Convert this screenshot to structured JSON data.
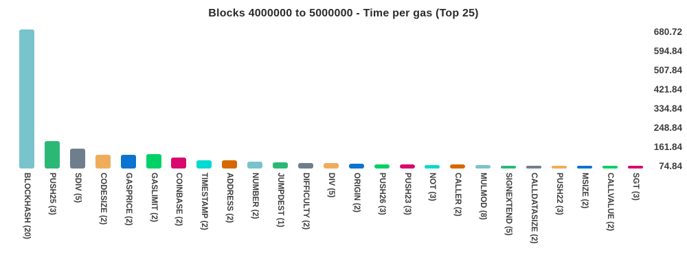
{
  "chart_data": {
    "type": "bar",
    "title": "Blocks 4000000 to 5000000 - Time per gas (Top 25)",
    "xlabel": "",
    "ylabel": "",
    "legend": "none",
    "grid": false,
    "y_axis_side": "right",
    "x_label_rotation_deg": 90,
    "background": "#ffffff",
    "ylim": [
      70,
      680.72
    ],
    "y_ticks": [
      "680.72",
      "594.84",
      "507.84",
      "421.84",
      "334.84",
      "248.84",
      "161.84",
      "74.84"
    ],
    "palette": [
      "#79C3CC",
      "#2BB877",
      "#6F7E8C",
      "#EFAD5B",
      "#0B74D0",
      "#00D166",
      "#D9086F",
      "#02DAD1",
      "#D66800"
    ],
    "bars": [
      {
        "label": "BLOCKHASH (20)",
        "opcode": "BLOCKHASH",
        "count": 20,
        "value": 680.72
      },
      {
        "label": "PUSH25 (3)",
        "opcode": "PUSH25",
        "count": 3,
        "value": 191
      },
      {
        "label": "SDIV (5)",
        "opcode": "SDIV",
        "count": 5,
        "value": 158
      },
      {
        "label": "CODESIZE (2)",
        "opcode": "CODESIZE",
        "count": 2,
        "value": 129
      },
      {
        "label": "GASPRICE (2)",
        "opcode": "GASPRICE",
        "count": 2,
        "value": 129
      },
      {
        "label": "GASLIMIT (2)",
        "opcode": "GASLIMIT",
        "count": 2,
        "value": 132
      },
      {
        "label": "COINBASE (2)",
        "opcode": "COINBASE",
        "count": 2,
        "value": 117
      },
      {
        "label": "TIMESTAMP (2)",
        "opcode": "TIMESTAMP",
        "count": 2,
        "value": 105
      },
      {
        "label": "ADDRESS (2)",
        "opcode": "ADDRESS",
        "count": 2,
        "value": 105
      },
      {
        "label": "NUMBER (2)",
        "opcode": "NUMBER",
        "count": 2,
        "value": 99
      },
      {
        "label": "JUMPDEST (1)",
        "opcode": "JUMPDEST",
        "count": 1,
        "value": 96
      },
      {
        "label": "DIFFICULTY (2)",
        "opcode": "DIFFICULTY",
        "count": 2,
        "value": 94
      },
      {
        "label": "DIV (5)",
        "opcode": "DIV",
        "count": 5,
        "value": 94
      },
      {
        "label": "ORIGIN (2)",
        "opcode": "ORIGIN",
        "count": 2,
        "value": 90
      },
      {
        "label": "PUSH26 (3)",
        "opcode": "PUSH26",
        "count": 3,
        "value": 89
      },
      {
        "label": "PUSH23 (3)",
        "opcode": "PUSH23",
        "count": 3,
        "value": 87
      },
      {
        "label": "NOT (3)",
        "opcode": "NOT",
        "count": 3,
        "value": 86
      },
      {
        "label": "CALLER (2)",
        "opcode": "CALLER",
        "count": 2,
        "value": 87
      },
      {
        "label": "MULMOD (8)",
        "opcode": "MULMOD",
        "count": 8,
        "value": 84
      },
      {
        "label": "SIGNEXTEND (5)",
        "opcode": "SIGNEXTEND",
        "count": 5,
        "value": 82
      },
      {
        "label": "CALLDATASIZE (2)",
        "opcode": "CALLDATASIZE",
        "count": 2,
        "value": 81
      },
      {
        "label": "PUSH22 (3)",
        "opcode": "PUSH22",
        "count": 3,
        "value": 79
      },
      {
        "label": "MSIZE (2)",
        "opcode": "MSIZE",
        "count": 2,
        "value": 78
      },
      {
        "label": "CALLVALUE (2)",
        "opcode": "CALLVALUE",
        "count": 2,
        "value": 78
      },
      {
        "label": "SGT (3)",
        "opcode": "SGT",
        "count": 3,
        "value": 74.84
      }
    ]
  }
}
